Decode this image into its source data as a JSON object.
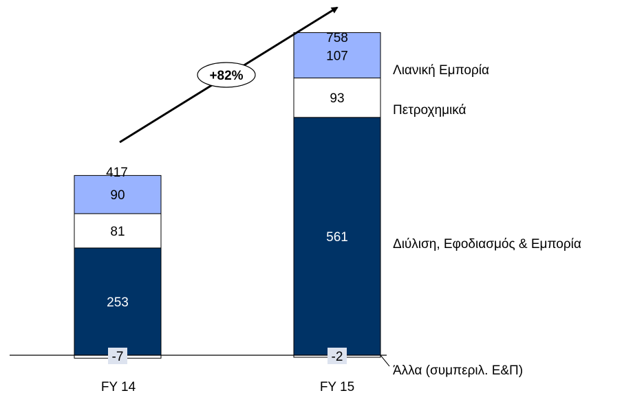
{
  "chart_data": {
    "type": "bar",
    "stacked": true,
    "categories": [
      "FY 14",
      "FY 15"
    ],
    "totals": [
      417,
      758
    ],
    "series": [
      {
        "name": "Άλλα (συμπεριλ. Ε&Π)",
        "values": [
          -7,
          -2
        ],
        "color": "#dde3ef"
      },
      {
        "name": "Διύλιση, Εφοδιασμός & Εμπορία",
        "values": [
          253,
          561
        ],
        "color": "#003366"
      },
      {
        "name": "Πετροχημικά",
        "values": [
          81,
          93
        ],
        "color": "#ffffff"
      },
      {
        "name": "Λιανική Εμπορία",
        "values": [
          90,
          107
        ],
        "color": "#99b3ff"
      }
    ],
    "growth_annotation": "+82%",
    "legend_placement": "right",
    "grid": false
  }
}
